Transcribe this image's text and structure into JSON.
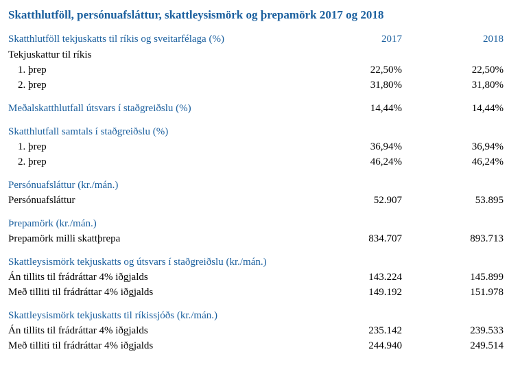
{
  "title": "Skatthlutföll, persónuafsláttur, skattleysismörk og þrepamörk 2017 og 2018",
  "header": {
    "label": "Skatthlutföll tekjuskatts til ríkis og sveitarfélaga (%)",
    "col1": "2017",
    "col2": "2018"
  },
  "rows": [
    {
      "label": "Tekjuskattur til ríkis",
      "v1": "",
      "v2": ""
    },
    {
      "label": "1. þrep",
      "v1": "22,50%",
      "v2": "22,50%"
    },
    {
      "label": "2. þrep",
      "v1": "31,80%",
      "v2": "31,80%"
    },
    {
      "label": "Meðalskatthlutfall útsvars í staðgreiðslu (%)",
      "v1": "14,44%",
      "v2": "14,44%"
    },
    {
      "label": "Skatthlutfall samtals í staðgreiðslu (%)"
    },
    {
      "label": "1. þrep",
      "v1": "36,94%",
      "v2": "36,94%"
    },
    {
      "label": "2. þrep",
      "v1": "46,24%",
      "v2": "46,24%"
    },
    {
      "label": "Persónuafsláttur (kr./mán.)"
    },
    {
      "label": "Persónuafsláttur",
      "v1": "52.907",
      "v2": "53.895"
    },
    {
      "label": "Þrepamörk (kr./mán.)"
    },
    {
      "label": "Þrepamörk milli skattþrepa",
      "v1": "834.707",
      "v2": "893.713"
    },
    {
      "label": "Skattleysismörk tekjuskatts og útsvars í staðgreiðslu (kr./mán.)"
    },
    {
      "label": "Án tillits til frádráttar 4% iðgjalds",
      "v1": "143.224",
      "v2": "145.899"
    },
    {
      "label": "Með tilliti til frádráttar 4% iðgjalds",
      "v1": "149.192",
      "v2": "151.978"
    },
    {
      "label": "Skattleysismörk tekjuskatts til ríkissjóðs (kr./mán.)"
    },
    {
      "label": "Án tillits til frádráttar 4% iðgjalds",
      "v1": "235.142",
      "v2": "239.533"
    },
    {
      "label": "Með tilliti til frádráttar 4% iðgjalds",
      "v1": "244.940",
      "v2": "249.514"
    }
  ]
}
